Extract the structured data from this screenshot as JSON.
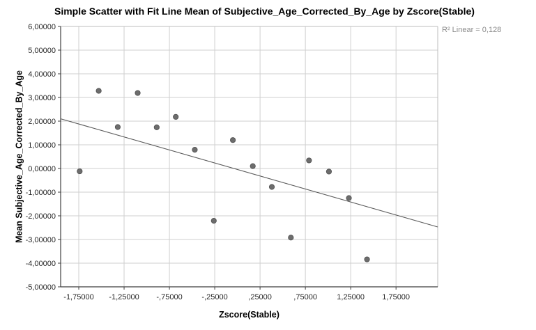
{
  "chart_data": {
    "type": "scatter",
    "title": "Simple Scatter with Fit Line Mean of Subjective_Age_Corrected_By_Age by Zscore(Stable)",
    "annotation": "R² Linear = 0,128",
    "xlabel": "Zscore(Stable)",
    "ylabel": "Mean Subjective_Age_Corrected_By_Age",
    "xlim": [
      -1.95,
      2.21
    ],
    "ylim": [
      -5,
      6
    ],
    "grid": true,
    "x_ticks": {
      "values": [
        -1.75,
        -1.25,
        -0.75,
        -0.25,
        0.25,
        0.75,
        1.25,
        1.75
      ],
      "labels": [
        "-1,75000",
        "-1,25000",
        "-,75000",
        "-,25000",
        ",25000",
        ",75000",
        "1,25000",
        "1,75000"
      ]
    },
    "y_ticks": {
      "values": [
        6,
        5,
        4,
        3,
        2,
        1,
        0,
        -1,
        -2,
        -3,
        -4,
        -5
      ],
      "labels": [
        "6,00000",
        "5,00000",
        "4,00000",
        "3,00000",
        "2,00000",
        "1,00000",
        "0,00000",
        "-1,00000",
        "-2,00000",
        "-3,00000",
        "-4,00000",
        "-5,00000"
      ]
    },
    "points": [
      {
        "x": -1.74,
        "y": -0.12
      },
      {
        "x": -1.53,
        "y": 3.28
      },
      {
        "x": -1.32,
        "y": 1.75
      },
      {
        "x": -1.1,
        "y": 3.19
      },
      {
        "x": -0.89,
        "y": 1.74
      },
      {
        "x": -0.68,
        "y": 2.18
      },
      {
        "x": -0.47,
        "y": 0.79
      },
      {
        "x": -0.26,
        "y": -2.21
      },
      {
        "x": -0.05,
        "y": 1.2
      },
      {
        "x": 0.17,
        "y": 0.1
      },
      {
        "x": 0.38,
        "y": -0.78
      },
      {
        "x": 0.59,
        "y": -2.92
      },
      {
        "x": 0.79,
        "y": 0.34
      },
      {
        "x": 1.01,
        "y": -0.13
      },
      {
        "x": 1.23,
        "y": -1.25
      },
      {
        "x": 1.43,
        "y": -3.84
      }
    ],
    "fit_line": {
      "x1": -1.95,
      "y1": 2.1,
      "x2": 2.21,
      "y2": -2.47
    },
    "colors": {
      "marker_fill": "#6d6d6d",
      "marker_stroke": "#575757",
      "fit_line": "#5a5a5a",
      "gridline": "#cfcfcf",
      "axis": "#3f3f3f",
      "frame": "#bdbdbd",
      "annotation": "#8a8a8a",
      "text": "#000000",
      "background": "#ffffff"
    }
  }
}
